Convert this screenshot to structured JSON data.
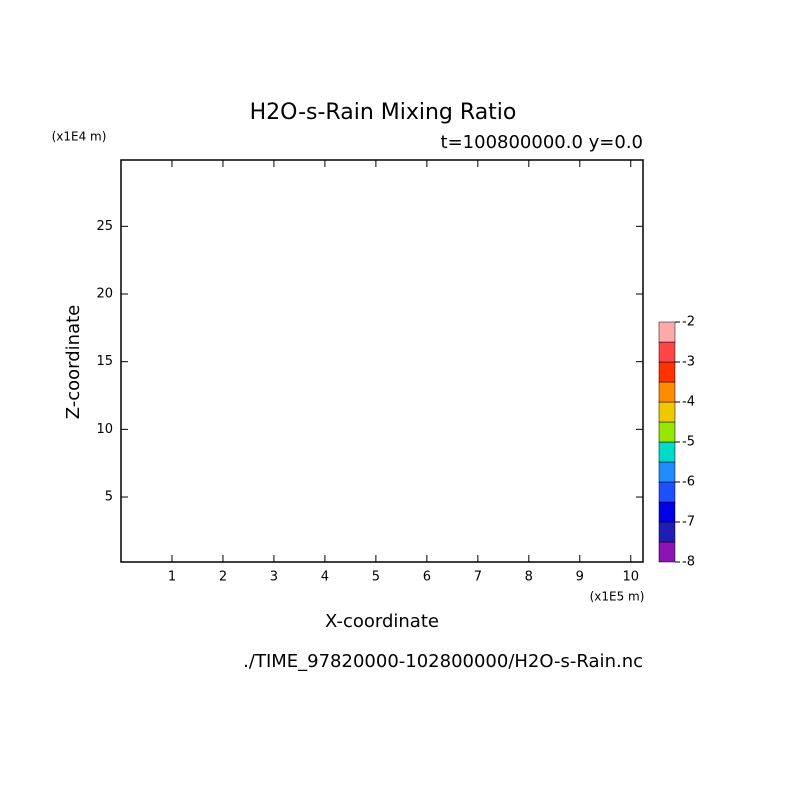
{
  "chart_data": {
    "type": "contour",
    "title": "H2O-s-Rain Mixing Ratio",
    "subtitle": "t=100800000.0 y=0.0",
    "x_label": "X-coordinate",
    "y_label": "Z-coordinate",
    "x_unit": "(x1E5 m)",
    "y_unit": "(x1E4 m)",
    "footer": "./TIME_97820000-102800000/H2O-s-Rain.nc",
    "xlim": [
      0,
      10.24
    ],
    "ylim": [
      0.2,
      29.9
    ],
    "xticks": [
      1,
      2,
      3,
      4,
      5,
      6,
      7,
      8,
      9,
      10
    ],
    "yticks": [
      5,
      10,
      15,
      20,
      25
    ],
    "colorbar": {
      "levels": [
        -8,
        -7.5,
        -7,
        -6.5,
        -6,
        -5.5,
        -5,
        -4.5,
        -4,
        -3.5,
        -3,
        -2.5,
        -2
      ],
      "colors": [
        "#8c14b4",
        "#1e1eb4",
        "#0000e6",
        "#1e50ff",
        "#1e8cff",
        "#00dcc8",
        "#96e600",
        "#f0c800",
        "#ff8c00",
        "#ff3200",
        "#ff4646",
        "#ffaaaa"
      ],
      "ticks": [
        -8,
        -7,
        -6,
        -5,
        -4,
        -3,
        -2
      ]
    }
  }
}
